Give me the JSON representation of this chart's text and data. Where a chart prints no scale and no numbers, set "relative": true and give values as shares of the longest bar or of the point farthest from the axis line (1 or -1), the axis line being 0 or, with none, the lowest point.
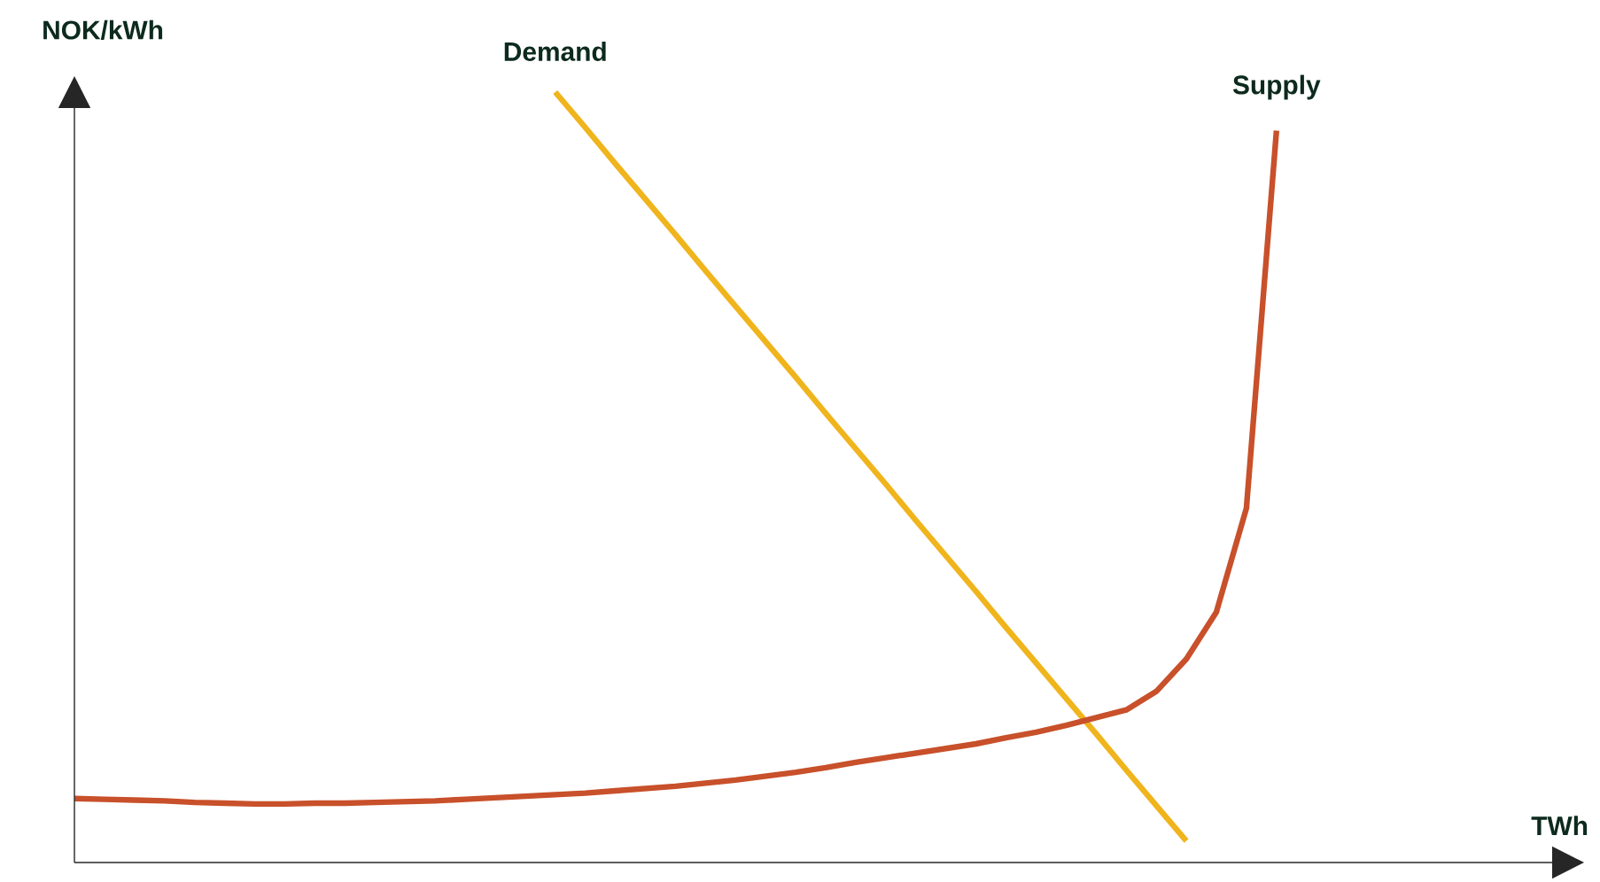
{
  "chart_data": {
    "type": "line",
    "relative": true,
    "xlabel": "TWh",
    "ylabel": "NOK/kWh",
    "marker": "none",
    "line_style": "solid",
    "categories": [
      null,
      null,
      null,
      null,
      null,
      null,
      null,
      null,
      null,
      null,
      null,
      null,
      null,
      null,
      null,
      null,
      null,
      null,
      null,
      null,
      null,
      null,
      null,
      null,
      null,
      null,
      null,
      null,
      null,
      null,
      null,
      null,
      null,
      null,
      null,
      null,
      null,
      null,
      null,
      null,
      null,
      null,
      null,
      null,
      null,
      null,
      null,
      null,
      null,
      null,
      null
    ],
    "series": [
      {
        "name": "Demand",
        "color": "#f0b41c",
        "values": [
          null,
          null,
          null,
          null,
          null,
          null,
          null,
          null,
          null,
          null,
          null,
          null,
          null,
          null,
          null,
          null,
          1.0,
          0.954,
          0.907,
          0.861,
          0.815,
          0.768,
          0.722,
          0.676,
          0.63,
          0.583,
          0.537,
          0.491,
          0.444,
          0.398,
          0.352,
          0.305,
          0.259,
          0.213,
          0.167,
          0.12,
          0.074,
          0.028,
          null,
          null,
          null,
          null,
          null,
          null,
          null,
          null,
          null,
          null,
          null,
          null,
          null
        ]
      },
      {
        "name": "Supply",
        "color": "#c8502a",
        "values": [
          0.083,
          0.082,
          0.081,
          0.08,
          0.078,
          0.077,
          0.076,
          0.076,
          0.077,
          0.077,
          0.078,
          0.079,
          0.08,
          0.082,
          0.084,
          0.086,
          0.088,
          0.09,
          0.093,
          0.096,
          0.099,
          0.103,
          0.107,
          0.112,
          0.117,
          0.123,
          0.13,
          0.136,
          0.142,
          0.148,
          0.154,
          0.162,
          0.169,
          0.178,
          0.188,
          0.198,
          0.222,
          0.264,
          0.325,
          0.46,
          0.95,
          null,
          null,
          null,
          null,
          null,
          null,
          null,
          null,
          null,
          null
        ]
      }
    ]
  }
}
